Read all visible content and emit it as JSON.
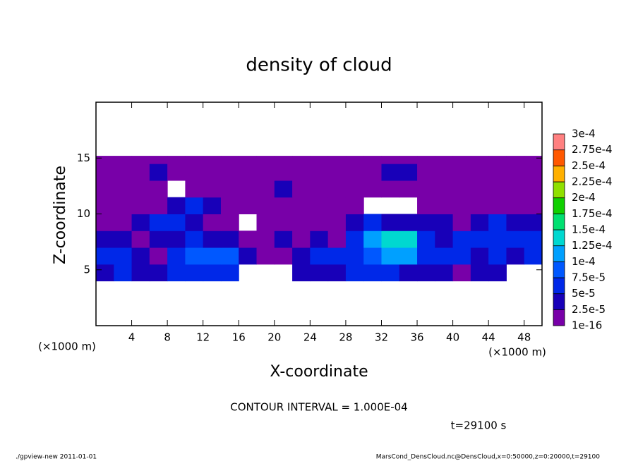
{
  "chart_data": {
    "type": "contour",
    "title": "density of cloud",
    "x_label": "X-coordinate",
    "y_label": "Z-coordinate",
    "x_unit_left": "(×1000 m)",
    "x_unit_right": "(×1000 m)",
    "contour_note": "CONTOUR INTERVAL = 1.000E-04",
    "time_note": "t=29100 s",
    "footer_left": "./gpview-new   2011-01-01",
    "footer_right": "MarsCond_DensCloud.nc@DensCloud,x=0:50000,z=0:20000,t=29100",
    "xlim": [
      0,
      50
    ],
    "ylim": [
      0,
      20
    ],
    "xticks": [
      4,
      8,
      12,
      16,
      20,
      24,
      28,
      32,
      36,
      40,
      44,
      48
    ],
    "yticks": [
      5,
      10,
      15
    ],
    "x_edges": [
      0,
      2,
      4,
      6,
      8,
      10,
      12,
      14,
      16,
      18,
      20,
      22,
      24,
      26,
      28,
      30,
      32,
      34,
      36,
      38,
      40,
      42,
      44,
      46,
      48,
      50
    ],
    "z_edges": [
      4,
      5.5,
      7,
      8.5,
      10,
      11.5,
      13,
      14.5,
      15.2
    ],
    "values": [
      [
        4e-05,
        5e-05,
        4e-05,
        3e-05,
        5e-05,
        6e-05,
        7e-05,
        6e-05,
        null,
        null,
        null,
        4e-05,
        3e-05,
        3e-05,
        5e-05,
        5e-05,
        6e-05,
        4e-05,
        3e-05,
        3e-05,
        2e-05,
        3e-05,
        3e-05,
        null,
        null
      ],
      [
        5e-05,
        6e-05,
        3e-05,
        2e-05,
        6e-05,
        8e-05,
        9e-05,
        8e-05,
        3e-05,
        2e-05,
        2e-05,
        4e-05,
        5e-05,
        6e-05,
        6e-05,
        8e-05,
        0.00011,
        0.00012,
        7e-05,
        5e-05,
        6e-05,
        4e-05,
        5e-05,
        4e-05,
        6e-05
      ],
      [
        3e-05,
        3e-05,
        2e-05,
        3e-05,
        4e-05,
        5e-05,
        4e-05,
        3e-05,
        2e-05,
        2e-05,
        3e-05,
        2e-05,
        3e-05,
        2e-05,
        6e-05,
        0.00012,
        0.00013,
        0.000135,
        6e-05,
        4e-05,
        6e-05,
        5e-05,
        7e-05,
        6e-05,
        5e-05
      ],
      [
        2e-05,
        2e-05,
        3e-05,
        5e-05,
        6e-05,
        3e-05,
        2e-05,
        2e-05,
        null,
        2e-05,
        1e-05,
        2e-05,
        2e-05,
        2e-05,
        3e-05,
        5e-05,
        4e-05,
        3e-05,
        4e-05,
        3e-05,
        2e-05,
        3e-05,
        5e-05,
        4e-05,
        3e-05
      ],
      [
        2e-05,
        2e-05,
        2e-05,
        2e-05,
        3e-05,
        5e-05,
        4e-05,
        2e-05,
        1e-05,
        1e-05,
        1e-05,
        1e-05,
        1e-05,
        1e-05,
        1e-05,
        null,
        null,
        null,
        1e-05,
        1e-05,
        1e-05,
        1e-05,
        2e-05,
        1e-05,
        1e-05
      ],
      [
        2e-05,
        1e-05,
        2e-05,
        1e-05,
        null,
        2e-05,
        1e-05,
        1e-05,
        1e-05,
        2e-05,
        3e-05,
        2e-05,
        1e-05,
        1e-05,
        1e-05,
        1e-05,
        1e-05,
        2e-05,
        1e-05,
        1e-05,
        1e-05,
        1e-05,
        1e-05,
        1e-05,
        1e-05
      ],
      [
        2e-05,
        2e-05,
        2e-05,
        3e-05,
        2e-05,
        1e-05,
        1e-05,
        1e-05,
        1e-05,
        2e-05,
        2e-05,
        1e-05,
        1e-05,
        2e-05,
        2e-05,
        1e-05,
        3e-05,
        3e-05,
        2e-05,
        1e-05,
        1e-05,
        1e-05,
        2e-05,
        2e-05,
        2e-05
      ],
      [
        1e-05,
        1e-05,
        1e-05,
        1e-05,
        1e-05,
        1e-05,
        1e-05,
        1e-05,
        1e-05,
        1e-05,
        1e-05,
        1e-05,
        1e-05,
        1e-05,
        1e-05,
        1e-05,
        2e-05,
        2e-05,
        1e-05,
        1e-05,
        1e-05,
        1e-05,
        1e-05,
        1e-05,
        1e-05
      ]
    ],
    "levels": [
      {
        "value": 1e-16,
        "label": "1e-16"
      },
      {
        "value": 2.5e-05,
        "label": "2.5e-5"
      },
      {
        "value": 5e-05,
        "label": "5e-5"
      },
      {
        "value": 7.5e-05,
        "label": "7.5e-5"
      },
      {
        "value": 0.0001,
        "label": "1e-4"
      },
      {
        "value": 0.000125,
        "label": "1.25e-4"
      },
      {
        "value": 0.00015,
        "label": "1.5e-4"
      },
      {
        "value": 0.000175,
        "label": "1.75e-4"
      },
      {
        "value": 0.0002,
        "label": "2e-4"
      },
      {
        "value": 0.000225,
        "label": "2.25e-4"
      },
      {
        "value": 0.00025,
        "label": "2.5e-4"
      },
      {
        "value": 0.000275,
        "label": "2.75e-4"
      },
      {
        "value": 0.0003,
        "label": "3e-4"
      }
    ],
    "colors": [
      "#7800a8",
      "#1800b8",
      "#0028e8",
      "#0058ff",
      "#00a0ff",
      "#00d8d0",
      "#00e070",
      "#10d000",
      "#90e000",
      "#ffb000",
      "#ff5800",
      "#ff8080"
    ]
  }
}
